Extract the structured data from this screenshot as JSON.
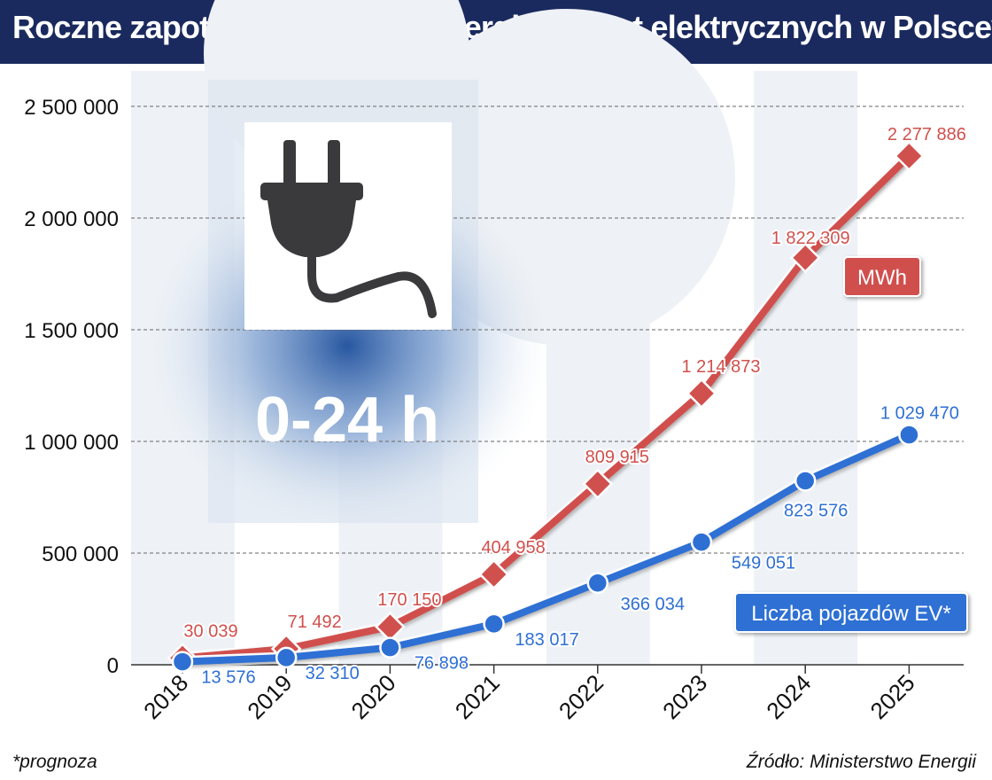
{
  "title": "Roczne zapotrzebowanie na energię dla aut elektrycznych w Polsce*",
  "footnote": "*prognoza",
  "source": "Źródło: Ministerstwo Energii",
  "decoration": {
    "overlay_text": "0-24 h",
    "icon": "plug-icon"
  },
  "colors": {
    "red": "#d0504d",
    "blue": "#2e6fd4",
    "header": "#1a2a5e"
  },
  "chart_data": {
    "type": "line",
    "categories": [
      "2018",
      "2019",
      "2020",
      "2021",
      "2022",
      "2023",
      "2024",
      "2025"
    ],
    "ylim": [
      0,
      2500000
    ],
    "yticks": [
      "0",
      "500 000",
      "1 000 000",
      "1 500 000",
      "2 000 000",
      "2 500 000"
    ],
    "grid": true,
    "series": [
      {
        "name": "MWh",
        "color": "#d0504d",
        "values": [
          30039,
          71492,
          170150,
          404958,
          809915,
          1214873,
          1822309,
          2277886
        ],
        "labels": [
          "30 039",
          "71 492",
          "170 150",
          "404 958",
          "809 915",
          "1 214 873",
          "1 822 309",
          "2 277 886"
        ]
      },
      {
        "name": "Liczba pojazdów EV*",
        "color": "#2e6fd4",
        "values": [
          13576,
          32310,
          76898,
          183017,
          366034,
          549051,
          823576,
          1029470
        ],
        "labels": [
          "13 576",
          "32 310",
          "76 898",
          "183 017",
          "366 034",
          "549 051",
          "823 576",
          "1 029 470"
        ]
      }
    ]
  }
}
